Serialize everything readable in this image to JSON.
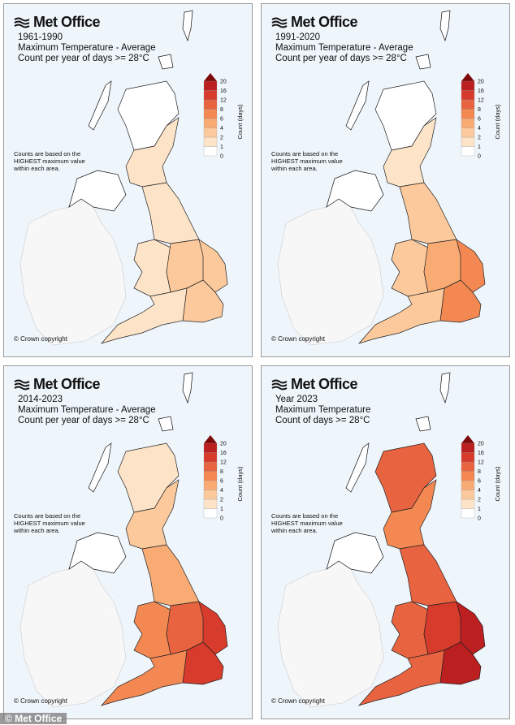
{
  "brand": "Met Office",
  "footer_credit": "© Met Office",
  "legend": {
    "label": "Count (days)",
    "ticks": [
      "0",
      "1",
      "2",
      "4",
      "6",
      "8",
      "12",
      "16",
      "20"
    ],
    "colors": [
      "#ffffff",
      "#fde3c8",
      "#fbc99c",
      "#f9ab74",
      "#f38852",
      "#e8633f",
      "#d63b2c",
      "#bb1f1f",
      "#7d0a0a"
    ]
  },
  "note": [
    "Counts are based on the",
    "HIGHEST maximum value",
    "within each area."
  ],
  "copyright": "© Crown copyright",
  "panels": [
    {
      "period": "1961-1990",
      "line2": "Maximum Temperature - Average",
      "line3": "Count per year of days >= 28°C",
      "regions": {
        "north_scotland": 0.5,
        "south_scotland": 1.5,
        "north_england": 1.5,
        "wales": 1.5,
        "midlands": 3,
        "east_anglia": 3,
        "south_east": 3,
        "south_west": 1.5
      }
    },
    {
      "period": "1991-2020",
      "line2": "Maximum Temperature - Average",
      "line3": "Count per year of days >= 28°C",
      "regions": {
        "north_scotland": 0.5,
        "south_scotland": 1.5,
        "north_england": 3,
        "wales": 3,
        "midlands": 5,
        "east_anglia": 7,
        "south_east": 7,
        "south_west": 3
      }
    },
    {
      "period": "2014-2023",
      "line2": "Maximum Temperature - Average",
      "line3": "Count per year of days >= 28°C",
      "regions": {
        "north_scotland": 1.5,
        "south_scotland": 3,
        "north_england": 5,
        "wales": 7,
        "midlands": 10,
        "east_anglia": 14,
        "south_east": 14,
        "south_west": 7
      }
    },
    {
      "period": "Year 2023",
      "line2": "Maximum Temperature",
      "line3": "Count of days >= 28°C",
      "regions": {
        "north_scotland": 10,
        "south_scotland": 7,
        "north_england": 10,
        "wales": 10,
        "midlands": 14,
        "east_anglia": 18,
        "south_east": 18,
        "south_west": 10
      }
    }
  ]
}
